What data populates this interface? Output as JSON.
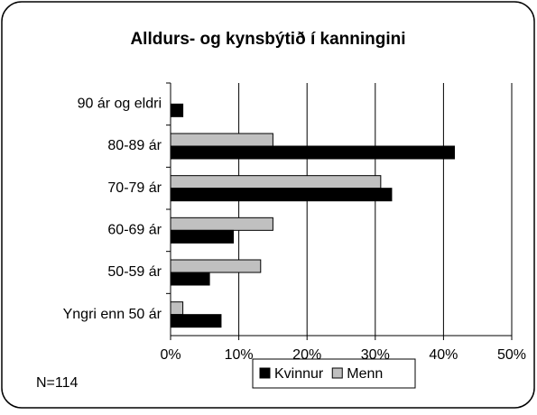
{
  "chart_data": {
    "type": "barh",
    "title": "Alldurs- og kynsbýtið í kanningini",
    "categories": [
      "90 ár og eldri",
      "80-89 ár",
      "70-79 ár",
      "60-69 ár",
      "50-59 ár",
      "Yngri enn 50 ár"
    ],
    "series": [
      {
        "name": "Kvinnur",
        "color": "#000000",
        "values": [
          1.8,
          41.6,
          32.4,
          9.2,
          5.7,
          7.4
        ]
      },
      {
        "name": "Menn",
        "color": "#c0c0c0",
        "values": [
          0,
          15,
          30.8,
          15,
          13.2,
          1.8
        ]
      }
    ],
    "xlim": [
      0,
      50
    ],
    "xticks": [
      {
        "value": 0,
        "label": "0%"
      },
      {
        "value": 10,
        "label": "10%"
      },
      {
        "value": 20,
        "label": "20%"
      },
      {
        "value": 30,
        "label": "30%"
      },
      {
        "value": 40,
        "label": "40%"
      },
      {
        "value": 50,
        "label": "50%"
      }
    ],
    "grid": true,
    "annotation": "N=114"
  }
}
